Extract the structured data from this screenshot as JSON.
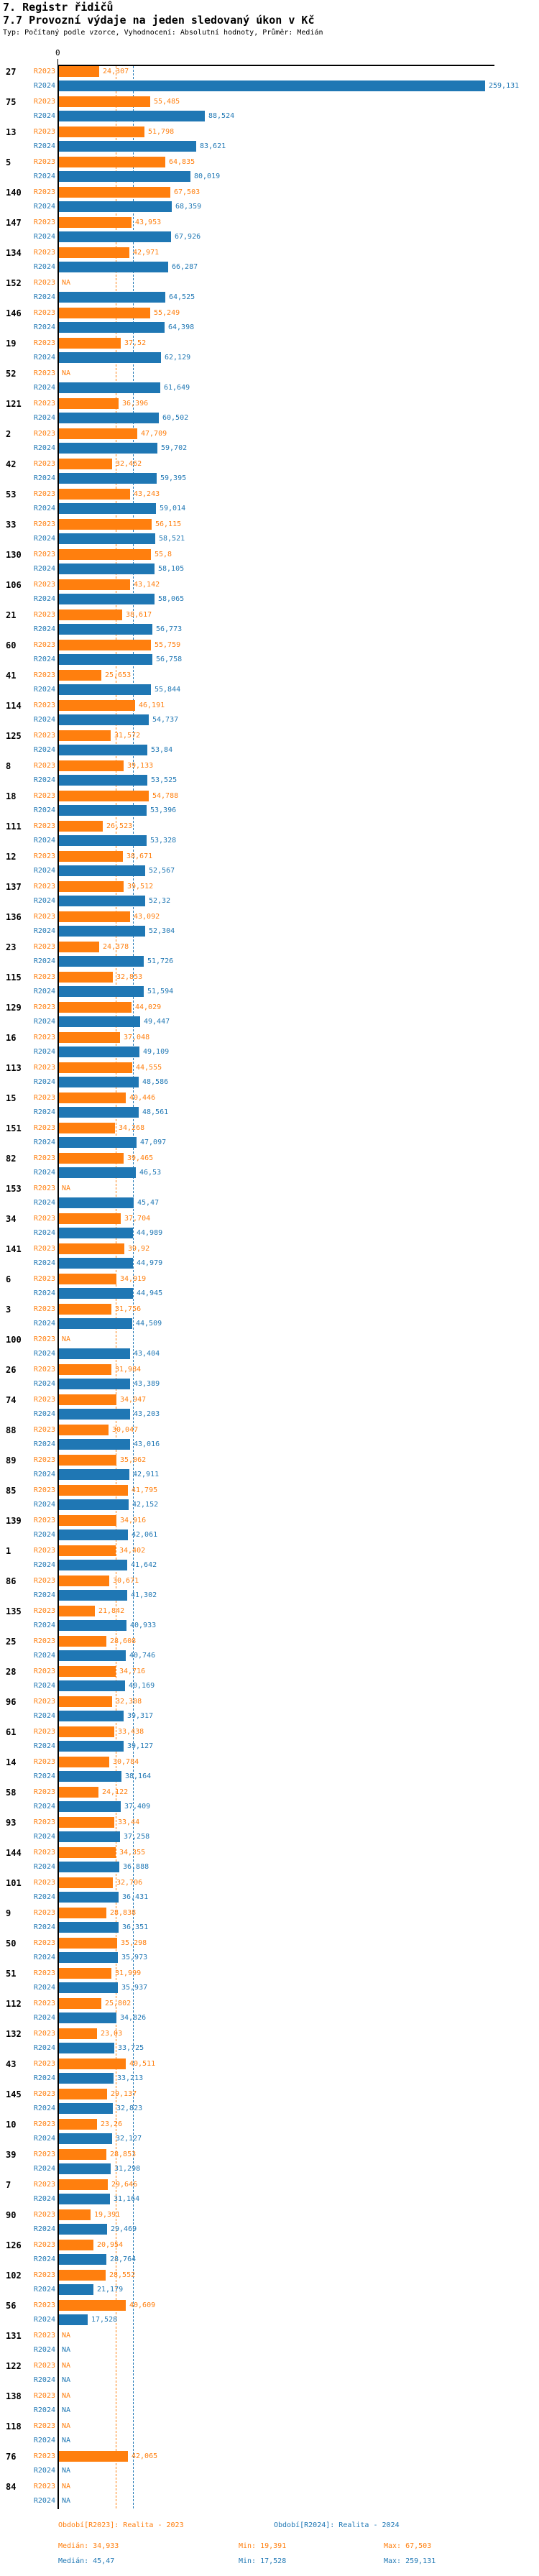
{
  "header": {
    "title": "7. Registr řidičů",
    "subtitle": "7.7 Provozní výdaje na jeden sledovaný úkon v Kč",
    "meta": "Typ: Počítaný podle vzorce, Vyhodnocení: Absolutní hodnoty, Průměr: Medián"
  },
  "axis": {
    "zero_label": "0"
  },
  "legend": {
    "period_2023": "Období[R2023]: Realita - 2023",
    "period_2024": "Období[R2024]: Realita - 2024",
    "stats_2023": {
      "median": "Medián: 34,933",
      "min": "Min: 19,391",
      "max": "Max: 67,503"
    },
    "stats_2024": {
      "median": "Medián: 45,47",
      "min": "Min: 17,528",
      "max": "Max: 259,131"
    }
  },
  "colors": {
    "r2023": "#ff7f0e",
    "r2024": "#1f77b4",
    "axis": "#000000"
  },
  "chart_data": {
    "type": "bar",
    "orientation": "horizontal",
    "title": "7.7 Provozní výdaje na jeden sledovaný úkon v Kč",
    "value_unit": "Kč",
    "decimal_separator": ",",
    "na_label": "NA",
    "xlim": [
      0,
      265
    ],
    "grid": false,
    "categories": [
      "27",
      "75",
      "13",
      "5",
      "140",
      "147",
      "134",
      "152",
      "146",
      "19",
      "52",
      "121",
      "2",
      "42",
      "53",
      "33",
      "130",
      "106",
      "21",
      "60",
      "41",
      "114",
      "125",
      "8",
      "18",
      "111",
      "12",
      "137",
      "136",
      "23",
      "115",
      "129",
      "16",
      "113",
      "15",
      "151",
      "82",
      "153",
      "34",
      "141",
      "6",
      "3",
      "100",
      "26",
      "74",
      "88",
      "89",
      "85",
      "139",
      "1",
      "86",
      "135",
      "25",
      "28",
      "96",
      "61",
      "14",
      "58",
      "93",
      "144",
      "101",
      "9",
      "50",
      "51",
      "112",
      "132",
      "43",
      "145",
      "10",
      "39",
      "7",
      "90",
      "126",
      "102",
      "56",
      "131",
      "122",
      "138",
      "118",
      "76",
      "84"
    ],
    "series": [
      {
        "name": "R2023",
        "period": "Realita - 2023",
        "color": "#ff7f0e",
        "median": 34.933,
        "min": 19.391,
        "max": 67.503,
        "values": [
          24.307,
          55.485,
          51.798,
          64.835,
          67.503,
          43.953,
          42.971,
          null,
          55.249,
          37.52,
          null,
          36.396,
          47.709,
          32.462,
          43.243,
          56.115,
          55.8,
          43.142,
          38.617,
          55.759,
          25.653,
          46.191,
          31.572,
          39.133,
          54.788,
          26.523,
          38.671,
          39.512,
          43.092,
          24.378,
          32.853,
          44.029,
          37.048,
          44.555,
          40.446,
          34.268,
          39.465,
          null,
          37.704,
          39.92,
          34.919,
          31.756,
          null,
          31.984,
          34.947,
          30.047,
          35.062,
          41.795,
          34.916,
          34.402,
          30.671,
          21.842,
          28.608,
          34.716,
          32.308,
          33.438,
          30.784,
          24.122,
          33.44,
          34.355,
          32.706,
          28.838,
          35.298,
          31.999,
          25.802,
          23.03,
          40.511,
          29.137,
          23.26,
          28.853,
          29.646,
          19.391,
          20.954,
          28.552,
          40.609,
          null,
          null,
          null,
          null,
          42.065,
          null
        ]
      },
      {
        "name": "R2024",
        "period": "Realita - 2024",
        "color": "#1f77b4",
        "median": 45.47,
        "min": 17.528,
        "max": 259.131,
        "values": [
          259.131,
          88.524,
          83.621,
          80.019,
          68.359,
          67.926,
          66.287,
          64.525,
          64.398,
          62.129,
          61.649,
          60.502,
          59.702,
          59.395,
          59.014,
          58.521,
          58.105,
          58.065,
          56.773,
          56.758,
          55.844,
          54.737,
          53.84,
          53.525,
          53.396,
          53.328,
          52.567,
          52.32,
          52.304,
          51.726,
          51.594,
          49.447,
          49.109,
          48.586,
          48.561,
          47.097,
          46.53,
          45.47,
          44.989,
          44.979,
          44.945,
          44.509,
          43.404,
          43.389,
          43.203,
          43.016,
          42.911,
          42.152,
          42.061,
          41.642,
          41.302,
          40.933,
          40.746,
          40.169,
          39.317,
          39.127,
          38.164,
          37.409,
          37.258,
          36.888,
          36.431,
          36.351,
          35.973,
          35.937,
          34.826,
          33.725,
          33.213,
          32.823,
          32.127,
          31.298,
          31.164,
          29.469,
          28.764,
          21.179,
          17.528,
          null,
          null,
          null,
          null,
          null,
          null
        ]
      }
    ],
    "reference_lines": [
      {
        "label": "Medián R2023",
        "value": 34.933,
        "color": "#ff7f0e",
        "style": "dashed"
      },
      {
        "label": "Medián R2024",
        "value": 45.47,
        "color": "#1f77b4",
        "style": "dashed"
      }
    ]
  }
}
